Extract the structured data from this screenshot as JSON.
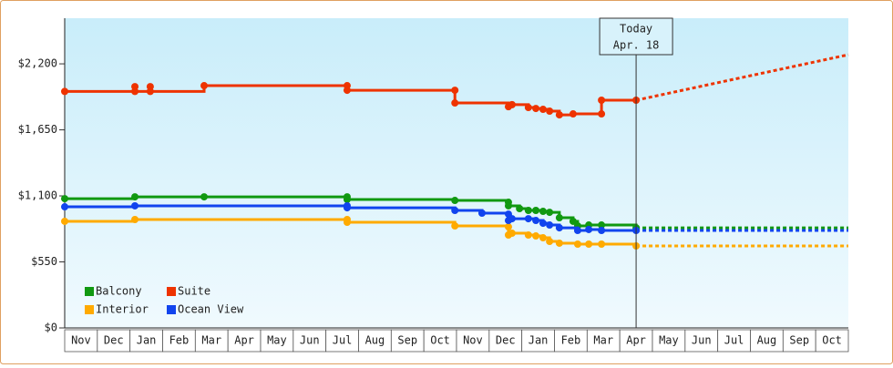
{
  "chart_data": {
    "type": "step-line",
    "categories": [
      "Nov",
      "Dec",
      "Jan",
      "Feb",
      "Mar",
      "Apr",
      "May",
      "Jun",
      "Jul",
      "Aug",
      "Sep",
      "Oct",
      "Nov",
      "Dec",
      "Jan",
      "Feb",
      "Mar",
      "Apr",
      "May",
      "Jun",
      "Jul",
      "Aug",
      "Sep",
      "Oct"
    ],
    "xlim": [
      0,
      24
    ],
    "ylim": [
      0,
      2580
    ],
    "yticks": [
      {
        "value": 0,
        "label": "$0"
      },
      {
        "value": 550,
        "label": "$550"
      },
      {
        "value": 1100,
        "label": "$1,100"
      },
      {
        "value": 1650,
        "label": "$1,650"
      },
      {
        "value": 2200,
        "label": "$2,200"
      }
    ],
    "annotation": {
      "lines": [
        "Today",
        "Apr. 18"
      ],
      "x": 17.5
    },
    "legend": "lower-left",
    "series": [
      {
        "name": "Balcony",
        "color": "#119911",
        "x": [
          0,
          2.15,
          4.27,
          8.65,
          8.65,
          11.95,
          13.59,
          13.59,
          13.93,
          14.2,
          14.43,
          14.65,
          14.85,
          15.15,
          15.57,
          15.71,
          16.05,
          16.44,
          17.5
        ],
        "values": [
          1077,
          1092,
          1092,
          1092,
          1070,
          1062,
          1047,
          1017,
          994,
          979,
          979,
          971,
          963,
          918,
          888,
          850,
          857,
          857,
          834
        ],
        "forecast": {
          "x": [
            24
          ],
          "values": [
            834
          ]
        }
      },
      {
        "name": "Suite",
        "color": "#ee3300",
        "x": [
          0,
          2.15,
          2.15,
          2.62,
          2.62,
          4.27,
          8.65,
          8.65,
          11.95,
          11.95,
          13.59,
          13.7,
          14.2,
          14.43,
          14.65,
          14.85,
          15.15,
          15.57,
          16.44,
          16.44,
          17.5
        ],
        "values": [
          1970,
          2010,
          1970,
          2010,
          1970,
          2018,
          2018,
          1980,
          1980,
          1874,
          1843,
          1860,
          1836,
          1828,
          1821,
          1806,
          1775,
          1783,
          1783,
          1897,
          1897
        ],
        "forecast": {
          "x": [
            24
          ],
          "values": [
            2276
          ]
        }
      },
      {
        "name": "Interior",
        "color": "#ffaa00",
        "x": [
          0,
          2.15,
          8.65,
          8.65,
          11.95,
          13.59,
          13.59,
          13.7,
          14.2,
          14.43,
          14.65,
          14.85,
          15.15,
          15.71,
          16.05,
          16.44,
          17.5
        ],
        "values": [
          888,
          903,
          903,
          880,
          850,
          842,
          774,
          789,
          774,
          766,
          751,
          721,
          706,
          698,
          698,
          698,
          683
        ],
        "forecast": {
          "x": [
            24
          ],
          "values": [
            683
          ]
        }
      },
      {
        "name": "Ocean View",
        "color": "#1144ee",
        "x": [
          0,
          2.15,
          8.65,
          8.65,
          11.95,
          12.78,
          13.59,
          13.59,
          13.7,
          14.2,
          14.43,
          14.65,
          14.85,
          15.15,
          15.71,
          16.05,
          16.44,
          17.5
        ],
        "values": [
          1009,
          1017,
          1017,
          1001,
          979,
          956,
          948,
          895,
          910,
          910,
          895,
          872,
          857,
          834,
          812,
          820,
          812,
          812
        ],
        "forecast": {
          "x": [
            24
          ],
          "values": [
            812
          ]
        }
      }
    ]
  }
}
